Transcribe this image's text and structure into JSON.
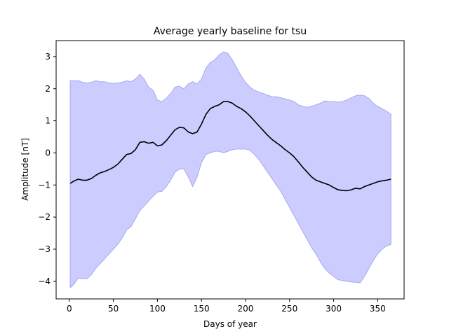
{
  "chart_data": {
    "type": "area",
    "title": "Average yearly baseline for tsu",
    "xlabel": "Days of year",
    "ylabel": "Amplitude [nT]",
    "xlim": [
      -15,
      380
    ],
    "ylim": [
      -4.55,
      3.5
    ],
    "xticks": [
      0,
      50,
      100,
      150,
      200,
      250,
      300,
      350
    ],
    "yticks": [
      -4,
      -3,
      -2,
      -1,
      0,
      1,
      2,
      3
    ],
    "grid": false,
    "legend": "none",
    "colors": {
      "mean": "#000000",
      "band_fill": "#ccccff",
      "band_edge": "#a8a8f0"
    },
    "series": [
      {
        "role": "mean",
        "x": [
          1,
          5,
          10,
          15,
          20,
          25,
          30,
          35,
          40,
          45,
          50,
          55,
          60,
          65,
          70,
          75,
          80,
          85,
          90,
          95,
          100,
          105,
          110,
          115,
          120,
          125,
          130,
          135,
          140,
          145,
          150,
          155,
          160,
          165,
          170,
          175,
          180,
          185,
          190,
          195,
          200,
          205,
          210,
          215,
          220,
          225,
          230,
          235,
          240,
          245,
          250,
          255,
          260,
          265,
          270,
          275,
          280,
          285,
          290,
          295,
          300,
          305,
          310,
          315,
          320,
          325,
          330,
          335,
          340,
          345,
          350,
          355,
          360,
          365
        ],
        "y": [
          -0.95,
          -0.88,
          -0.82,
          -0.85,
          -0.85,
          -0.8,
          -0.7,
          -0.62,
          -0.58,
          -0.52,
          -0.45,
          -0.35,
          -0.2,
          -0.05,
          -0.02,
          0.1,
          0.33,
          0.35,
          0.3,
          0.33,
          0.22,
          0.25,
          0.38,
          0.55,
          0.72,
          0.8,
          0.78,
          0.65,
          0.6,
          0.65,
          0.9,
          1.2,
          1.38,
          1.45,
          1.5,
          1.6,
          1.6,
          1.55,
          1.45,
          1.38,
          1.28,
          1.15,
          1.0,
          0.85,
          0.7,
          0.55,
          0.42,
          0.32,
          0.22,
          0.1,
          0.0,
          -0.12,
          -0.28,
          -0.45,
          -0.6,
          -0.75,
          -0.85,
          -0.9,
          -0.95,
          -1.0,
          -1.08,
          -1.15,
          -1.17,
          -1.18,
          -1.15,
          -1.1,
          -1.12,
          -1.05,
          -1.0,
          -0.95,
          -0.9,
          -0.87,
          -0.85,
          -0.82
        ]
      },
      {
        "role": "upper",
        "x": [
          1,
          5,
          10,
          15,
          20,
          25,
          30,
          35,
          40,
          45,
          50,
          55,
          60,
          65,
          70,
          75,
          80,
          85,
          90,
          95,
          100,
          105,
          110,
          115,
          120,
          125,
          130,
          135,
          140,
          145,
          150,
          155,
          160,
          165,
          170,
          175,
          180,
          185,
          190,
          195,
          200,
          205,
          210,
          215,
          220,
          225,
          230,
          235,
          240,
          245,
          250,
          255,
          260,
          265,
          270,
          275,
          280,
          285,
          290,
          295,
          300,
          305,
          310,
          315,
          320,
          325,
          330,
          335,
          340,
          345,
          350,
          355,
          360,
          365
        ],
        "y": [
          2.25,
          2.25,
          2.25,
          2.2,
          2.18,
          2.2,
          2.25,
          2.22,
          2.22,
          2.18,
          2.17,
          2.18,
          2.2,
          2.25,
          2.22,
          2.3,
          2.45,
          2.3,
          2.05,
          1.95,
          1.65,
          1.6,
          1.7,
          1.85,
          2.05,
          2.08,
          2.0,
          2.15,
          2.22,
          2.15,
          2.3,
          2.65,
          2.82,
          2.9,
          3.05,
          3.15,
          3.1,
          2.9,
          2.65,
          2.4,
          2.2,
          2.05,
          1.95,
          1.9,
          1.85,
          1.8,
          1.75,
          1.75,
          1.72,
          1.68,
          1.65,
          1.6,
          1.5,
          1.45,
          1.42,
          1.45,
          1.5,
          1.55,
          1.62,
          1.6,
          1.6,
          1.58,
          1.6,
          1.65,
          1.72,
          1.78,
          1.8,
          1.78,
          1.7,
          1.55,
          1.45,
          1.38,
          1.3,
          1.2
        ]
      },
      {
        "role": "lower",
        "x": [
          1,
          5,
          10,
          15,
          20,
          25,
          30,
          35,
          40,
          45,
          50,
          55,
          60,
          65,
          70,
          75,
          80,
          85,
          90,
          95,
          100,
          105,
          110,
          115,
          120,
          125,
          130,
          135,
          140,
          145,
          150,
          155,
          160,
          165,
          170,
          175,
          180,
          185,
          190,
          195,
          200,
          205,
          210,
          215,
          220,
          225,
          230,
          235,
          240,
          245,
          250,
          255,
          260,
          265,
          270,
          275,
          280,
          285,
          290,
          295,
          300,
          305,
          310,
          315,
          320,
          325,
          330,
          335,
          340,
          345,
          350,
          355,
          360,
          365
        ],
        "y": [
          -4.2,
          -4.1,
          -3.9,
          -3.92,
          -3.92,
          -3.8,
          -3.6,
          -3.45,
          -3.3,
          -3.15,
          -3.0,
          -2.85,
          -2.65,
          -2.4,
          -2.3,
          -2.05,
          -1.8,
          -1.65,
          -1.5,
          -1.35,
          -1.22,
          -1.2,
          -1.05,
          -0.85,
          -0.6,
          -0.5,
          -0.5,
          -0.75,
          -1.05,
          -0.75,
          -0.3,
          -0.05,
          0.0,
          0.05,
          0.05,
          0.0,
          0.05,
          0.1,
          0.12,
          0.12,
          0.12,
          0.08,
          -0.05,
          -0.2,
          -0.4,
          -0.6,
          -0.8,
          -1.0,
          -1.2,
          -1.45,
          -1.7,
          -1.95,
          -2.2,
          -2.45,
          -2.7,
          -2.95,
          -3.15,
          -3.4,
          -3.6,
          -3.75,
          -3.85,
          -3.95,
          -3.98,
          -4.0,
          -4.02,
          -4.03,
          -4.05,
          -3.85,
          -3.6,
          -3.35,
          -3.15,
          -3.0,
          -2.9,
          -2.85
        ]
      }
    ]
  }
}
